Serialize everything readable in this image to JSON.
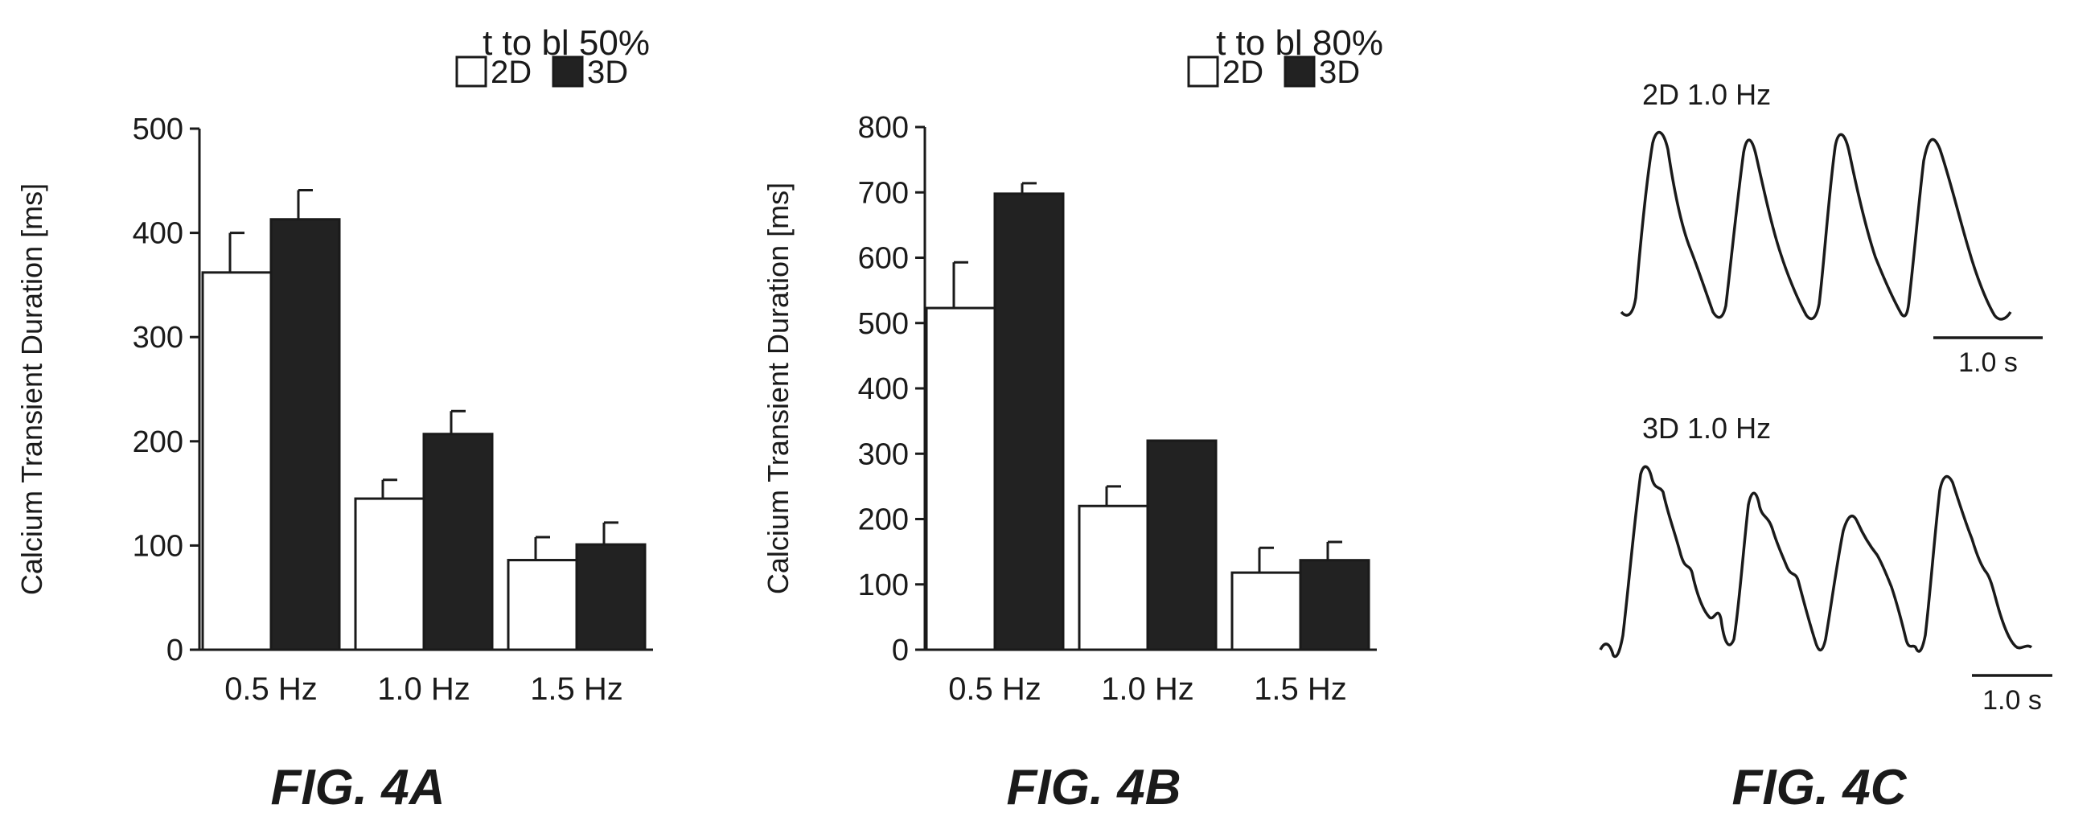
{
  "chart_data": [
    {
      "type": "bar",
      "panel_caption": "FIG. 4A",
      "metric_label": "t to bl 50%",
      "ylabel": "Calcium Transient Duration [ms]",
      "categories": [
        "0.5 Hz",
        "1.0 Hz",
        "1.5 Hz"
      ],
      "ylim": [
        0,
        500
      ],
      "yticks": [
        0,
        100,
        200,
        300,
        400,
        500
      ],
      "series": [
        {
          "name": "2D",
          "values": [
            362,
            145,
            86
          ],
          "errors": [
            38,
            18,
            22
          ],
          "color": "#ffffff"
        },
        {
          "name": "3D",
          "values": [
            413,
            207,
            101
          ],
          "errors": [
            28,
            22,
            21
          ],
          "color": "#222222"
        }
      ],
      "legend": "top-right",
      "grid": false
    },
    {
      "type": "bar",
      "panel_caption": "FIG. 4B",
      "metric_label": "t to bl 80%",
      "ylabel": "Calcium Transient Duration [ms]",
      "categories": [
        "0.5 Hz",
        "1.0 Hz",
        "1.5 Hz"
      ],
      "ylim": [
        0,
        800
      ],
      "yticks": [
        0,
        100,
        200,
        300,
        400,
        500,
        600,
        700,
        800
      ],
      "series": [
        {
          "name": "2D",
          "values": [
            523,
            220,
            118
          ],
          "errors": [
            70,
            30,
            38
          ],
          "color": "#ffffff"
        },
        {
          "name": "3D",
          "values": [
            698,
            320,
            137
          ],
          "errors": [
            16,
            0,
            28
          ],
          "color": "#222222"
        }
      ],
      "legend": "top-right",
      "grid": false
    },
    {
      "type": "line",
      "panel_caption": "FIG. 4C",
      "traces": [
        {
          "title": "2D 1.0 Hz",
          "scale_bar": "1.0 s"
        },
        {
          "title": "3D 1.0 Hz",
          "scale_bar": "1.0 s"
        }
      ]
    }
  ]
}
